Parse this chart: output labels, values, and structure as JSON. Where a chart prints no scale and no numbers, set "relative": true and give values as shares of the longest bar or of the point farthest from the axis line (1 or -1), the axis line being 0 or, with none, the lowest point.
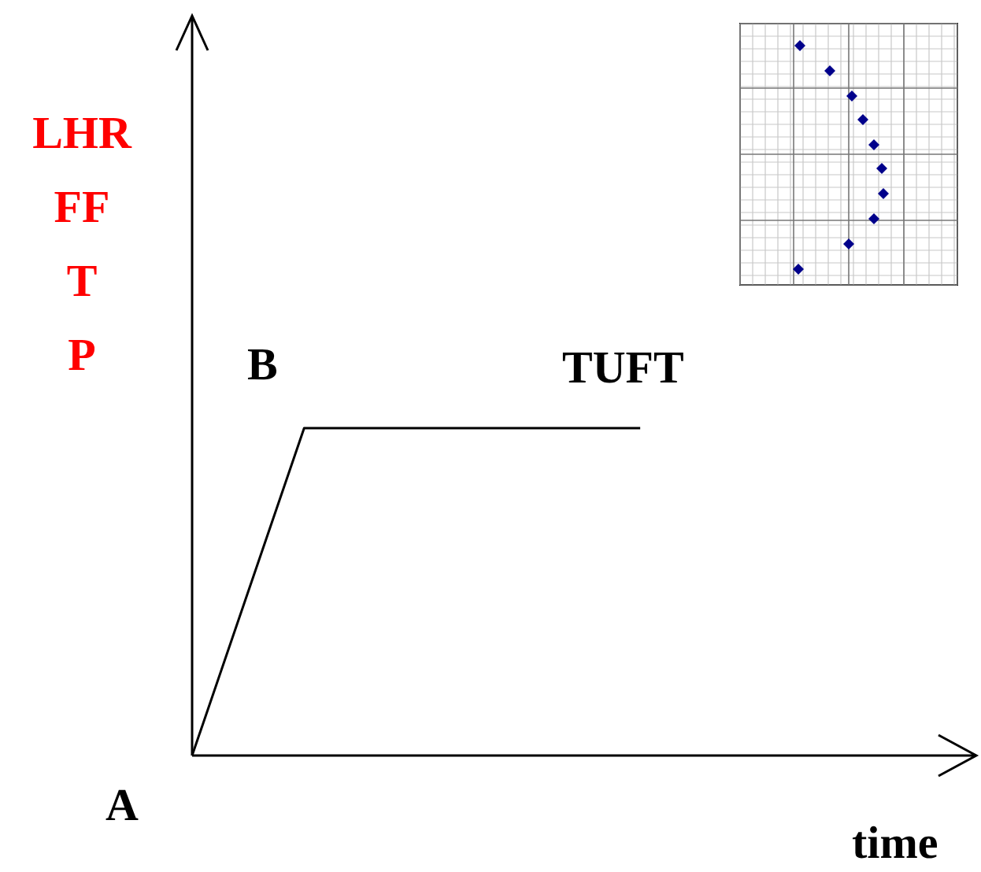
{
  "chart_data": {
    "type": "line",
    "relative": true,
    "ylabel": "LHR FF T P",
    "xlabel": "time",
    "categories": [
      null,
      null,
      null,
      null,
      null,
      null,
      null,
      null
    ],
    "series": [
      {
        "color": "#000000",
        "values": [
          0,
          1,
          1,
          1,
          1,
          null,
          null,
          null
        ]
      }
    ],
    "annotations": [
      "A",
      "B",
      "TUFT"
    ],
    "marker": "none",
    "line_style": "solid",
    "legend": false
  }
}
